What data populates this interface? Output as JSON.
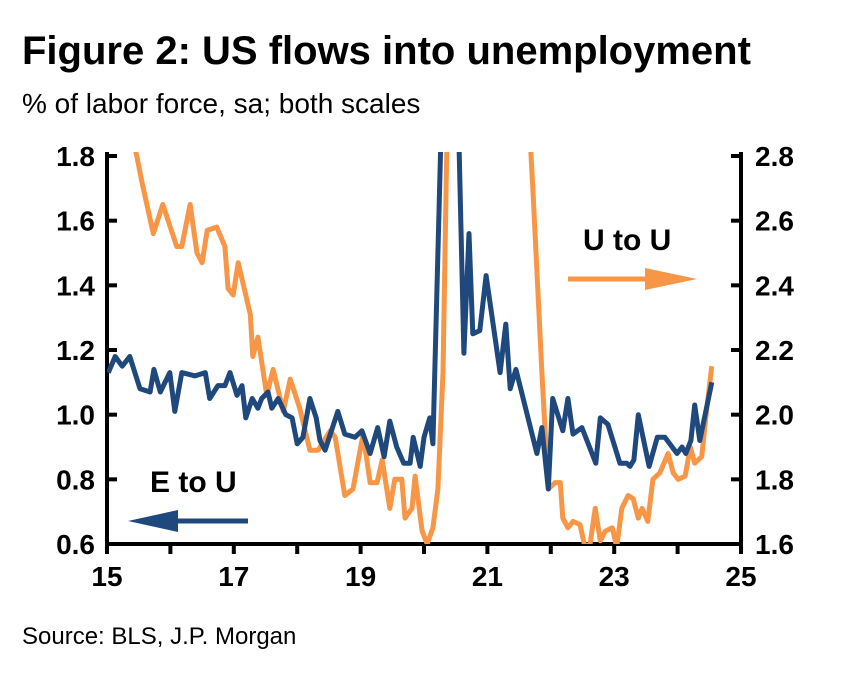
{
  "chart_data": {
    "type": "line",
    "title": "Figure 2: US flows into unemployment",
    "subtitle": "% of labor force, sa; both scales",
    "source": "Source: BLS, J.P. Morgan",
    "xlim": [
      15,
      25
    ],
    "x_ticks": [
      "15",
      "17",
      "19",
      "21",
      "23",
      "25"
    ],
    "x_tick_values": [
      15,
      17,
      19,
      21,
      23,
      25
    ],
    "y_left": {
      "lim": [
        0.6,
        1.8
      ],
      "ticks": [
        "0.6",
        "0.8",
        "1.0",
        "1.2",
        "1.4",
        "1.6",
        "1.8"
      ]
    },
    "y_right": {
      "lim": [
        1.6,
        2.8
      ],
      "ticks": [
        "1.6",
        "1.8",
        "2.0",
        "2.2",
        "2.4",
        "2.6",
        "2.8"
      ]
    },
    "grid": false,
    "series": [
      {
        "name": "E to U",
        "axis": "left",
        "color": "#1f497d",
        "arrow": "left",
        "points": [
          [
            15.02,
            1.13
          ],
          [
            15.13,
            1.18
          ],
          [
            15.24,
            1.15
          ],
          [
            15.36,
            1.18
          ],
          [
            15.52,
            1.08
          ],
          [
            15.68,
            1.07
          ],
          [
            15.74,
            1.14
          ],
          [
            15.84,
            1.07
          ],
          [
            15.99,
            1.13
          ],
          [
            16.07,
            1.01
          ],
          [
            16.18,
            1.13
          ],
          [
            16.39,
            1.12
          ],
          [
            16.55,
            1.13
          ],
          [
            16.62,
            1.05
          ],
          [
            16.75,
            1.09
          ],
          [
            16.86,
            1.09
          ],
          [
            16.94,
            1.13
          ],
          [
            17.05,
            1.06
          ],
          [
            17.13,
            1.09
          ],
          [
            17.19,
            0.99
          ],
          [
            17.29,
            1.05
          ],
          [
            17.38,
            1.02
          ],
          [
            17.44,
            1.05
          ],
          [
            17.54,
            1.07
          ],
          [
            17.6,
            1.02
          ],
          [
            17.7,
            1.05
          ],
          [
            17.82,
            1.0
          ],
          [
            17.92,
            0.99
          ],
          [
            18.0,
            0.91
          ],
          [
            18.09,
            0.93
          ],
          [
            18.2,
            1.05
          ],
          [
            18.3,
            0.99
          ],
          [
            18.36,
            0.92
          ],
          [
            18.44,
            0.89
          ],
          [
            18.64,
            1.01
          ],
          [
            18.75,
            0.94
          ],
          [
            18.91,
            0.93
          ],
          [
            19.02,
            0.95
          ],
          [
            19.15,
            0.88
          ],
          [
            19.27,
            0.96
          ],
          [
            19.37,
            0.87
          ],
          [
            19.46,
            0.98
          ],
          [
            19.57,
            0.9
          ],
          [
            19.68,
            0.85
          ],
          [
            19.78,
            0.85
          ],
          [
            19.83,
            0.93
          ],
          [
            19.94,
            0.84
          ],
          [
            20.0,
            0.93
          ],
          [
            20.09,
            0.99
          ],
          [
            20.14,
            0.91
          ],
          [
            20.3,
            2.1
          ],
          [
            20.52,
            2.1
          ],
          [
            20.63,
            1.19
          ],
          [
            20.71,
            1.56
          ],
          [
            20.77,
            1.25
          ],
          [
            20.88,
            1.26
          ],
          [
            20.98,
            1.43
          ],
          [
            21.2,
            1.13
          ],
          [
            21.29,
            1.28
          ],
          [
            21.36,
            1.08
          ],
          [
            21.45,
            1.14
          ],
          [
            21.78,
            0.88
          ],
          [
            21.86,
            0.96
          ],
          [
            21.96,
            0.77
          ],
          [
            22.03,
            1.05
          ],
          [
            22.19,
            0.95
          ],
          [
            22.27,
            1.05
          ],
          [
            22.35,
            0.94
          ],
          [
            22.49,
            0.96
          ],
          [
            22.71,
            0.85
          ],
          [
            22.78,
            0.99
          ],
          [
            22.9,
            0.97
          ],
          [
            23.09,
            0.85
          ],
          [
            23.2,
            0.85
          ],
          [
            23.25,
            0.84
          ],
          [
            23.31,
            0.86
          ],
          [
            23.38,
            1.0
          ],
          [
            23.55,
            0.84
          ],
          [
            23.68,
            0.93
          ],
          [
            23.8,
            0.93
          ],
          [
            23.99,
            0.88
          ],
          [
            24.07,
            0.9
          ],
          [
            24.13,
            0.88
          ],
          [
            24.21,
            0.92
          ],
          [
            24.27,
            1.03
          ],
          [
            24.35,
            0.92
          ],
          [
            24.54,
            1.1
          ]
        ]
      },
      {
        "name": "U to U",
        "axis": "right",
        "color": "#f79646",
        "arrow": "right",
        "points": [
          [
            15.35,
            2.9
          ],
          [
            15.47,
            2.8
          ],
          [
            15.55,
            2.72
          ],
          [
            15.73,
            2.56
          ],
          [
            15.88,
            2.65
          ],
          [
            16.1,
            2.52
          ],
          [
            16.18,
            2.52
          ],
          [
            16.31,
            2.65
          ],
          [
            16.42,
            2.5
          ],
          [
            16.5,
            2.47
          ],
          [
            16.58,
            2.57
          ],
          [
            16.73,
            2.58
          ],
          [
            16.86,
            2.52
          ],
          [
            16.91,
            2.39
          ],
          [
            16.99,
            2.37
          ],
          [
            17.07,
            2.47
          ],
          [
            17.26,
            2.31
          ],
          [
            17.3,
            2.18
          ],
          [
            17.38,
            2.24
          ],
          [
            17.52,
            2.06
          ],
          [
            17.62,
            2.14
          ],
          [
            17.78,
            2.01
          ],
          [
            17.89,
            2.11
          ],
          [
            18.04,
            2.02
          ],
          [
            18.2,
            1.89
          ],
          [
            18.33,
            1.89
          ],
          [
            18.52,
            1.95
          ],
          [
            18.6,
            1.93
          ],
          [
            18.75,
            1.75
          ],
          [
            18.88,
            1.77
          ],
          [
            19.04,
            1.94
          ],
          [
            19.15,
            1.79
          ],
          [
            19.26,
            1.79
          ],
          [
            19.34,
            1.86
          ],
          [
            19.46,
            1.71
          ],
          [
            19.54,
            1.8
          ],
          [
            19.65,
            1.8
          ],
          [
            19.7,
            1.68
          ],
          [
            19.81,
            1.71
          ],
          [
            19.86,
            1.81
          ],
          [
            19.97,
            1.64
          ],
          [
            20.05,
            1.6
          ],
          [
            20.14,
            1.65
          ],
          [
            20.22,
            1.77
          ],
          [
            20.3,
            2.13
          ],
          [
            20.4,
            3.3
          ],
          [
            21.55,
            3.3
          ],
          [
            21.72,
            2.69
          ],
          [
            21.86,
            2.13
          ],
          [
            21.96,
            1.77
          ],
          [
            22.07,
            1.79
          ],
          [
            22.15,
            1.79
          ],
          [
            22.19,
            1.68
          ],
          [
            22.27,
            1.65
          ],
          [
            22.35,
            1.67
          ],
          [
            22.46,
            1.66
          ],
          [
            22.54,
            1.59
          ],
          [
            22.62,
            1.6
          ],
          [
            22.7,
            1.71
          ],
          [
            22.78,
            1.61
          ],
          [
            22.86,
            1.64
          ],
          [
            22.97,
            1.65
          ],
          [
            23.04,
            1.59
          ],
          [
            23.12,
            1.71
          ],
          [
            23.22,
            1.75
          ],
          [
            23.3,
            1.74
          ],
          [
            23.38,
            1.68
          ],
          [
            23.44,
            1.71
          ],
          [
            23.53,
            1.67
          ],
          [
            23.61,
            1.8
          ],
          [
            23.72,
            1.82
          ],
          [
            23.85,
            1.88
          ],
          [
            23.93,
            1.82
          ],
          [
            24.01,
            1.8
          ],
          [
            24.12,
            1.81
          ],
          [
            24.2,
            1.9
          ],
          [
            24.27,
            1.85
          ],
          [
            24.38,
            1.87
          ],
          [
            24.46,
            2.02
          ],
          [
            24.54,
            2.15
          ]
        ]
      }
    ]
  }
}
